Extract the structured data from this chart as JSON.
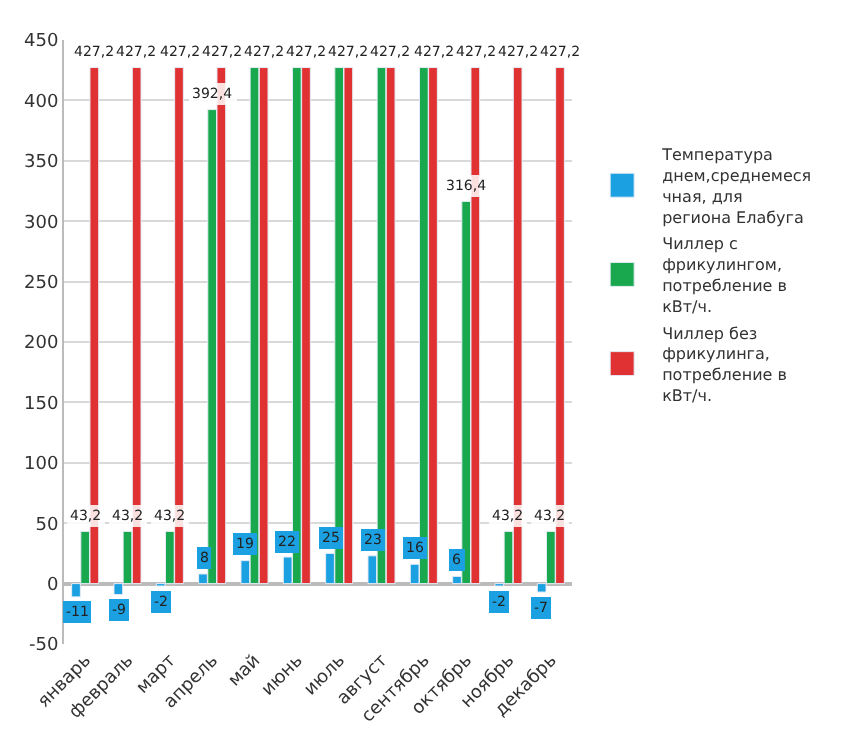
{
  "chart_data": {
    "type": "bar",
    "categories": [
      "январь",
      "февраль",
      "март",
      "апрель",
      "май",
      "июнь",
      "июль",
      "август",
      "сентябрь",
      "октябрь",
      "ноябрь",
      "декабрь"
    ],
    "series": [
      {
        "name": "Температура днем,среднемесячная, для региона Елабуга",
        "color": "#1ba1e2",
        "values": [
          -11,
          -9,
          -2,
          8,
          19,
          22,
          25,
          23,
          16,
          6,
          -2,
          -7
        ],
        "value_labels": [
          "-11",
          "-9",
          "-2",
          "8",
          "19",
          "22",
          "25",
          "23",
          "16",
          "6",
          "-2",
          "-7"
        ]
      },
      {
        "name": "Чиллер с фрикулингом, потребление в кВт/ч.",
        "color": "#1aa84f",
        "values": [
          43.2,
          43.2,
          43.2,
          392.4,
          427.2,
          427.2,
          427.2,
          427.2,
          427.2,
          316.4,
          43.2,
          43.2
        ],
        "value_labels": [
          "43,2",
          "43,2",
          "43,2",
          "392,4",
          null,
          null,
          null,
          null,
          null,
          "316,4",
          "43,2",
          "43,2"
        ]
      },
      {
        "name": "Чиллер без фрикулинга, потребление в кВт/ч.",
        "color": "#e03232",
        "values": [
          427.2,
          427.2,
          427.2,
          427.2,
          427.2,
          427.2,
          427.2,
          427.2,
          427.2,
          427.2,
          427.2,
          427.2
        ],
        "value_labels": [
          "427,2",
          "427,2",
          "427,2",
          "427,2",
          "427,2",
          "427,2",
          "427,2",
          "427,2",
          "427,2",
          "427,2",
          "427,2",
          "427,2"
        ]
      }
    ],
    "ylim": [
      -50,
      450
    ],
    "yticks": [
      -50,
      0,
      50,
      100,
      150,
      200,
      250,
      300,
      350,
      400,
      450
    ],
    "grid": "y",
    "legend": "right"
  }
}
